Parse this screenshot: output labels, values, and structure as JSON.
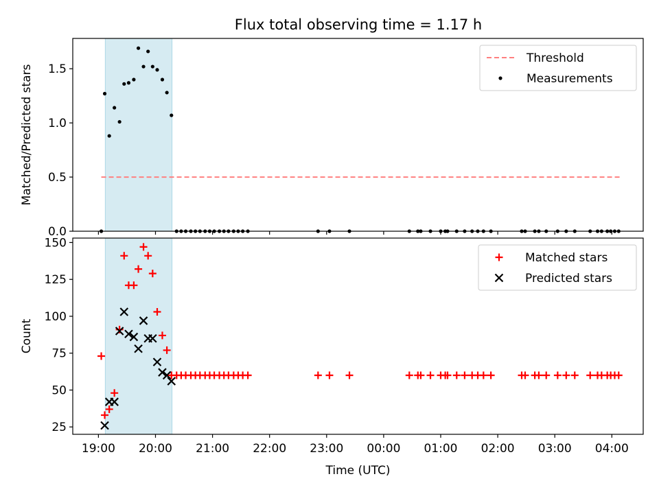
{
  "figure": {
    "title": "Flux total observing time = 1.17 h"
  },
  "colors": {
    "threshold": "#ff7f7f",
    "measurement": "#000000",
    "matched": "#ff0000",
    "predicted": "#000000",
    "span": "#add8e6"
  },
  "chart_data": [
    {
      "type": "scatter",
      "panel": "top",
      "title": "Flux total observing time = 1.17 h",
      "xlabel": "",
      "ylabel": "Matched/Predicted stars",
      "x_unit": "hours since 19:00 UTC (axis shows clock time)",
      "xlim": [
        -0.45,
        9.55
      ],
      "ylim": [
        0,
        1.78
      ],
      "yticks": [
        0.0,
        0.5,
        1.0,
        1.5
      ],
      "ytick_labels": [
        "0.0",
        "0.5",
        "1.0",
        "1.5"
      ],
      "legend": {
        "placement": "top-right",
        "entries": [
          "Threshold",
          "Measurements"
        ]
      },
      "shaded_span": [
        0.12,
        1.29
      ],
      "threshold": {
        "name": "Threshold",
        "style": "dashed",
        "x": [
          0.05,
          9.15
        ],
        "y": 0.5
      },
      "series": [
        {
          "name": "Measurements",
          "marker": "dot",
          "points": [
            [
              0.05,
              0.0
            ],
            [
              0.11,
              1.27
            ],
            [
              0.19,
              0.88
            ],
            [
              0.28,
              1.14
            ],
            [
              0.37,
              1.01
            ],
            [
              0.45,
              1.36
            ],
            [
              0.53,
              1.37
            ],
            [
              0.62,
              1.4
            ],
            [
              0.7,
              1.69
            ],
            [
              0.79,
              1.52
            ],
            [
              0.87,
              1.66
            ],
            [
              0.95,
              1.52
            ],
            [
              1.03,
              1.49
            ],
            [
              1.12,
              1.4
            ],
            [
              1.2,
              1.28
            ],
            [
              1.28,
              1.07
            ],
            [
              1.37,
              0.0
            ],
            [
              1.45,
              0.0
            ],
            [
              1.53,
              0.0
            ],
            [
              1.62,
              0.0
            ],
            [
              1.7,
              0.0
            ],
            [
              1.78,
              0.0
            ],
            [
              1.87,
              0.0
            ],
            [
              1.95,
              0.0
            ],
            [
              2.03,
              0.0
            ],
            [
              2.12,
              0.0
            ],
            [
              2.2,
              0.0
            ],
            [
              2.28,
              0.0
            ],
            [
              2.37,
              0.0
            ],
            [
              2.45,
              0.0
            ],
            [
              2.53,
              0.0
            ],
            [
              2.62,
              0.0
            ],
            [
              3.85,
              0.0
            ],
            [
              4.05,
              0.0
            ],
            [
              4.4,
              0.0
            ],
            [
              5.45,
              0.0
            ],
            [
              5.6,
              0.0
            ],
            [
              5.65,
              0.0
            ],
            [
              5.82,
              0.0
            ],
            [
              6.0,
              0.0
            ],
            [
              6.08,
              0.0
            ],
            [
              6.12,
              0.0
            ],
            [
              6.28,
              0.0
            ],
            [
              6.42,
              0.0
            ],
            [
              6.55,
              0.0
            ],
            [
              6.65,
              0.0
            ],
            [
              6.75,
              0.0
            ],
            [
              6.88,
              0.0
            ],
            [
              7.42,
              0.0
            ],
            [
              7.48,
              0.0
            ],
            [
              7.65,
              0.0
            ],
            [
              7.72,
              0.0
            ],
            [
              7.85,
              0.0
            ],
            [
              8.05,
              0.0
            ],
            [
              8.2,
              0.0
            ],
            [
              8.35,
              0.0
            ],
            [
              8.62,
              0.0
            ],
            [
              8.75,
              0.0
            ],
            [
              8.82,
              0.0
            ],
            [
              8.92,
              0.0
            ],
            [
              8.98,
              0.0
            ],
            [
              9.05,
              0.0
            ],
            [
              9.12,
              0.0
            ]
          ]
        }
      ]
    },
    {
      "type": "scatter",
      "panel": "bottom",
      "xlabel": "Time (UTC)",
      "ylabel": "Count",
      "x_unit": "hours since 19:00 UTC (axis shows clock time)",
      "xlim": [
        -0.45,
        9.55
      ],
      "ylim": [
        20,
        153
      ],
      "yticks": [
        25,
        50,
        75,
        100,
        125,
        150
      ],
      "ytick_labels": [
        "25",
        "50",
        "75",
        "100",
        "125",
        "150"
      ],
      "xticks": [
        0,
        1,
        2,
        3,
        4,
        5,
        6,
        7,
        8,
        9
      ],
      "xtick_labels": [
        "19:00",
        "20:00",
        "21:00",
        "22:00",
        "23:00",
        "00:00",
        "01:00",
        "02:00",
        "03:00",
        "04:00"
      ],
      "legend": {
        "placement": "top-right",
        "entries": [
          "Matched stars",
          "Predicted stars"
        ]
      },
      "shaded_span": [
        0.12,
        1.29
      ],
      "series": [
        {
          "name": "Matched stars",
          "marker": "plus",
          "points": [
            [
              0.05,
              73
            ],
            [
              0.11,
              33
            ],
            [
              0.19,
              37
            ],
            [
              0.28,
              48
            ],
            [
              0.37,
              91
            ],
            [
              0.45,
              141
            ],
            [
              0.53,
              121
            ],
            [
              0.62,
              121
            ],
            [
              0.7,
              132
            ],
            [
              0.79,
              147
            ],
            [
              0.87,
              141
            ],
            [
              0.95,
              129
            ],
            [
              1.03,
              103
            ],
            [
              1.12,
              87
            ],
            [
              1.2,
              77
            ],
            [
              1.28,
              60
            ],
            [
              1.37,
              60
            ],
            [
              1.45,
              60
            ],
            [
              1.53,
              60
            ],
            [
              1.62,
              60
            ],
            [
              1.7,
              60
            ],
            [
              1.78,
              60
            ],
            [
              1.87,
              60
            ],
            [
              1.95,
              60
            ],
            [
              2.03,
              60
            ],
            [
              2.12,
              60
            ],
            [
              2.2,
              60
            ],
            [
              2.28,
              60
            ],
            [
              2.37,
              60
            ],
            [
              2.45,
              60
            ],
            [
              2.53,
              60
            ],
            [
              2.62,
              60
            ],
            [
              3.85,
              60
            ],
            [
              4.05,
              60
            ],
            [
              4.4,
              60
            ],
            [
              5.45,
              60
            ],
            [
              5.6,
              60
            ],
            [
              5.65,
              60
            ],
            [
              5.82,
              60
            ],
            [
              6.0,
              60
            ],
            [
              6.08,
              60
            ],
            [
              6.12,
              60
            ],
            [
              6.28,
              60
            ],
            [
              6.42,
              60
            ],
            [
              6.55,
              60
            ],
            [
              6.65,
              60
            ],
            [
              6.75,
              60
            ],
            [
              6.88,
              60
            ],
            [
              7.42,
              60
            ],
            [
              7.48,
              60
            ],
            [
              7.65,
              60
            ],
            [
              7.72,
              60
            ],
            [
              7.85,
              60
            ],
            [
              8.05,
              60
            ],
            [
              8.2,
              60
            ],
            [
              8.35,
              60
            ],
            [
              8.62,
              60
            ],
            [
              8.75,
              60
            ],
            [
              8.82,
              60
            ],
            [
              8.92,
              60
            ],
            [
              8.98,
              60
            ],
            [
              9.05,
              60
            ],
            [
              9.12,
              60
            ]
          ]
        },
        {
          "name": "Predicted stars",
          "marker": "x",
          "points": [
            [
              0.11,
              26
            ],
            [
              0.19,
              42
            ],
            [
              0.28,
              42
            ],
            [
              0.37,
              90
            ],
            [
              0.45,
              103
            ],
            [
              0.53,
              88
            ],
            [
              0.62,
              86
            ],
            [
              0.7,
              78
            ],
            [
              0.79,
              97
            ],
            [
              0.87,
              85
            ],
            [
              0.95,
              85
            ],
            [
              1.03,
              69
            ],
            [
              1.12,
              62
            ],
            [
              1.2,
              60
            ],
            [
              1.28,
              56
            ]
          ]
        }
      ]
    }
  ]
}
